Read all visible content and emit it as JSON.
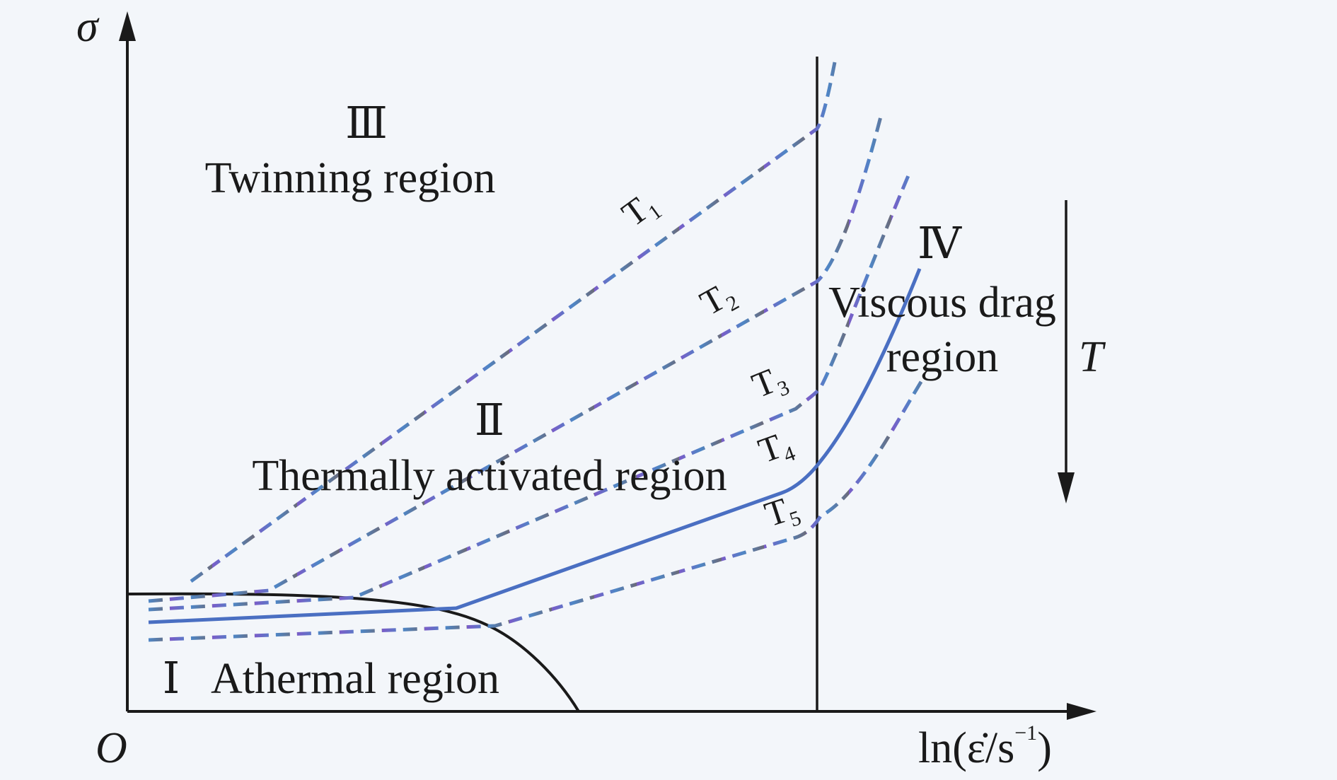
{
  "axes": {
    "y_label": "σ",
    "x_label": "ln(ε̇/s",
    "x_label_exp": "−1",
    "x_label_close": ")",
    "origin": "O"
  },
  "regions": {
    "r1_numeral": "Ⅰ",
    "r1_name": "Athermal region",
    "r2_numeral": "Ⅱ",
    "r2_name": "Thermally activated region",
    "r3_numeral": "Ⅲ",
    "r3_name": "Twinning region",
    "r4_numeral": "Ⅳ",
    "r4_name_line1": "Viscous drag",
    "r4_name_line2": "region"
  },
  "temperature_arrow": {
    "label": "T"
  },
  "curves": [
    {
      "name": "T",
      "sub": "1",
      "style": "dashed"
    },
    {
      "name": "T",
      "sub": "2",
      "style": "dashed"
    },
    {
      "name": "T",
      "sub": "3",
      "style": "dashed"
    },
    {
      "name": "T",
      "sub": "4",
      "style": "solid"
    },
    {
      "name": "T",
      "sub": "5",
      "style": "dashed"
    }
  ],
  "colors": {
    "axis": "#1a1a1a",
    "curve_solid": "#4a6fc2",
    "dash_a": "#7a5cc8",
    "dash_b": "#4f86c6",
    "dash_c": "#6b6b7a",
    "background": "#f3f6fa"
  }
}
